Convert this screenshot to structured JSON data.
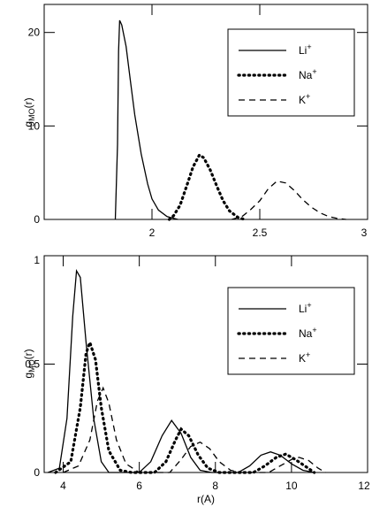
{
  "chart_data": [
    {
      "type": "line",
      "xlabel": "",
      "ylabel": "g",
      "ylabel_sub": "MO",
      "ylabel_tail": "(r)",
      "xlim": [
        1.5,
        3.0
      ],
      "ylim": [
        0,
        23
      ],
      "xticks": [
        1.5,
        2.0,
        2.5,
        3.0
      ],
      "xtick_labels": [
        "",
        "2",
        "2.5",
        "3"
      ],
      "yticks": [
        0,
        10,
        20
      ],
      "ytick_labels": [
        "0",
        "10",
        "20"
      ],
      "grid": false,
      "legend_position": "top-right",
      "series": [
        {
          "name": "Li",
          "sup": "+",
          "style": "solid",
          "points": [
            [
              1.83,
              0
            ],
            [
              1.84,
              8
            ],
            [
              1.845,
              18
            ],
            [
              1.85,
              21.3
            ],
            [
              1.86,
              20.8
            ],
            [
              1.88,
              18.5
            ],
            [
              1.9,
              14.8
            ],
            [
              1.92,
              11.2
            ],
            [
              1.95,
              7.0
            ],
            [
              1.98,
              3.8
            ],
            [
              2.0,
              2.2
            ],
            [
              2.03,
              1.0
            ],
            [
              2.07,
              0.3
            ],
            [
              2.12,
              0
            ]
          ]
        },
        {
          "name": "Na",
          "sup": "+",
          "style": "dotted",
          "points": [
            [
              2.08,
              0
            ],
            [
              2.1,
              0.4
            ],
            [
              2.13,
              1.5
            ],
            [
              2.16,
              3.5
            ],
            [
              2.19,
              5.6
            ],
            [
              2.22,
              6.9
            ],
            [
              2.24,
              6.6
            ],
            [
              2.27,
              5.3
            ],
            [
              2.3,
              3.6
            ],
            [
              2.33,
              2.0
            ],
            [
              2.36,
              0.9
            ],
            [
              2.4,
              0.2
            ],
            [
              2.43,
              0
            ]
          ]
        },
        {
          "name": "K",
          "sup": "+",
          "style": "dashed",
          "points": [
            [
              2.37,
              0
            ],
            [
              2.42,
              0.35
            ],
            [
              2.46,
              1.1
            ],
            [
              2.5,
              2.0
            ],
            [
              2.54,
              3.3
            ],
            [
              2.58,
              4.1
            ],
            [
              2.62,
              3.9
            ],
            [
              2.66,
              3.1
            ],
            [
              2.7,
              2.1
            ],
            [
              2.74,
              1.3
            ],
            [
              2.78,
              0.7
            ],
            [
              2.82,
              0.3
            ],
            [
              2.86,
              0.1
            ],
            [
              2.9,
              0
            ]
          ]
        }
      ]
    },
    {
      "type": "line",
      "xlabel": "r(A)",
      "ylabel": "g",
      "ylabel_sub": "MO",
      "ylabel_tail": "(r)",
      "xlim": [
        3.5,
        12.0
      ],
      "ylim": [
        0,
        1.0
      ],
      "xticks": [
        4,
        6,
        8,
        10,
        12
      ],
      "xtick_labels": [
        "4",
        "6",
        "8",
        "10",
        "12"
      ],
      "yticks": [
        0,
        0.5,
        1.0
      ],
      "ytick_labels": [
        "0",
        "0.5",
        "1"
      ],
      "grid": false,
      "legend_position": "top-right",
      "series": [
        {
          "name": "Li",
          "sup": "+",
          "style": "solid",
          "points": [
            [
              3.6,
              0
            ],
            [
              3.9,
              0.02
            ],
            [
              4.1,
              0.25
            ],
            [
              4.25,
              0.72
            ],
            [
              4.35,
              0.93
            ],
            [
              4.45,
              0.9
            ],
            [
              4.6,
              0.6
            ],
            [
              4.8,
              0.25
            ],
            [
              5.0,
              0.05
            ],
            [
              5.2,
              0
            ],
            [
              6.0,
              0
            ],
            [
              6.3,
              0.05
            ],
            [
              6.6,
              0.17
            ],
            [
              6.85,
              0.24
            ],
            [
              7.1,
              0.18
            ],
            [
              7.35,
              0.07
            ],
            [
              7.6,
              0.01
            ],
            [
              7.9,
              0
            ],
            [
              8.6,
              0
            ],
            [
              8.9,
              0.03
            ],
            [
              9.2,
              0.08
            ],
            [
              9.45,
              0.095
            ],
            [
              9.7,
              0.08
            ],
            [
              10.0,
              0.04
            ],
            [
              10.3,
              0.01
            ],
            [
              10.6,
              0
            ]
          ]
        },
        {
          "name": "Na",
          "sup": "+",
          "style": "dotted",
          "points": [
            [
              3.8,
              0
            ],
            [
              4.2,
              0.05
            ],
            [
              4.45,
              0.3
            ],
            [
              4.6,
              0.55
            ],
            [
              4.7,
              0.6
            ],
            [
              4.85,
              0.52
            ],
            [
              5.0,
              0.3
            ],
            [
              5.2,
              0.1
            ],
            [
              5.5,
              0.01
            ],
            [
              5.8,
              0
            ],
            [
              6.4,
              0
            ],
            [
              6.7,
              0.05
            ],
            [
              6.95,
              0.15
            ],
            [
              7.1,
              0.2
            ],
            [
              7.3,
              0.17
            ],
            [
              7.55,
              0.08
            ],
            [
              7.8,
              0.02
            ],
            [
              8.1,
              0
            ],
            [
              9.0,
              0
            ],
            [
              9.3,
              0.03
            ],
            [
              9.6,
              0.07
            ],
            [
              9.85,
              0.085
            ],
            [
              10.1,
              0.06
            ],
            [
              10.35,
              0.03
            ],
            [
              10.6,
              0
            ]
          ]
        },
        {
          "name": "K",
          "sup": "+",
          "style": "dashed",
          "points": [
            [
              4.0,
              0
            ],
            [
              4.4,
              0.03
            ],
            [
              4.7,
              0.15
            ],
            [
              4.9,
              0.33
            ],
            [
              5.05,
              0.39
            ],
            [
              5.2,
              0.32
            ],
            [
              5.4,
              0.15
            ],
            [
              5.65,
              0.04
            ],
            [
              6.0,
              0
            ],
            [
              6.8,
              0
            ],
            [
              7.1,
              0.06
            ],
            [
              7.35,
              0.12
            ],
            [
              7.6,
              0.14
            ],
            [
              7.85,
              0.11
            ],
            [
              8.1,
              0.05
            ],
            [
              8.4,
              0.01
            ],
            [
              8.7,
              0
            ],
            [
              9.4,
              0
            ],
            [
              9.7,
              0.03
            ],
            [
              10.0,
              0.06
            ],
            [
              10.2,
              0.07
            ],
            [
              10.45,
              0.055
            ],
            [
              10.7,
              0.02
            ],
            [
              10.9,
              0
            ]
          ]
        }
      ]
    }
  ]
}
